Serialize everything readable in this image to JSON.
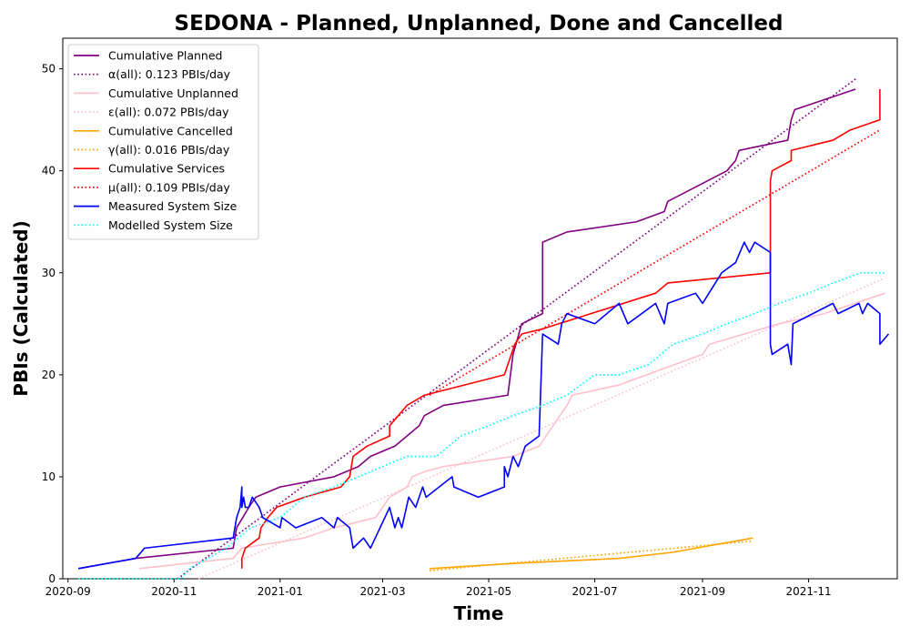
{
  "chart_data": {
    "type": "line",
    "title": "SEDONA - Planned, Unplanned, Done  and Cancelled",
    "xlabel": "Time",
    "ylabel": "PBIs (Calculated)",
    "x_axis_type": "date",
    "xlim": [
      "2020-08-29",
      "2021-12-22"
    ],
    "ylim": [
      0,
      53
    ],
    "x_tick_dates": [
      "2020-09-01",
      "2020-11-01",
      "2021-01-01",
      "2021-03-01",
      "2021-05-01",
      "2021-07-01",
      "2021-09-01",
      "2021-11-01"
    ],
    "x_tick_labels": [
      "2020-09",
      "2020-11",
      "2021-01",
      "2021-03",
      "2021-05",
      "2021-07",
      "2021-09",
      "2021-11"
    ],
    "y_ticks": [
      0,
      10,
      20,
      30,
      40,
      50
    ],
    "y_tick_labels": [
      "0",
      "10",
      "20",
      "30",
      "40",
      "50"
    ],
    "grid": false,
    "legend_position": "top-left",
    "series": [
      {
        "name": "Cumulative Planned",
        "color": "#800080",
        "style": "solid",
        "points": [
          [
            "2020-09-07",
            1
          ],
          [
            "2020-10-10",
            2
          ],
          [
            "2020-12-05",
            3
          ],
          [
            "2020-12-07",
            5
          ],
          [
            "2020-12-14",
            7
          ],
          [
            "2020-12-18",
            8
          ],
          [
            "2021-01-01",
            9
          ],
          [
            "2021-02-01",
            10
          ],
          [
            "2021-02-15",
            11
          ],
          [
            "2021-02-22",
            12
          ],
          [
            "2021-03-08",
            13
          ],
          [
            "2021-03-15",
            14
          ],
          [
            "2021-03-22",
            15
          ],
          [
            "2021-03-25",
            16
          ],
          [
            "2021-04-05",
            17
          ],
          [
            "2021-05-12",
            18
          ],
          [
            "2021-05-15",
            22
          ],
          [
            "2021-05-20",
            25
          ],
          [
            "2021-06-01",
            26
          ],
          [
            "2021-06-01",
            33
          ],
          [
            "2021-06-15",
            34
          ],
          [
            "2021-07-25",
            35
          ],
          [
            "2021-08-10",
            36
          ],
          [
            "2021-08-12",
            37
          ],
          [
            "2021-09-15",
            40
          ],
          [
            "2021-09-20",
            41
          ],
          [
            "2021-09-22",
            42
          ],
          [
            "2021-10-20",
            43
          ],
          [
            "2021-10-22",
            45
          ],
          [
            "2021-10-24",
            46
          ],
          [
            "2021-11-28",
            48
          ]
        ]
      },
      {
        "name": "α(all): 0.123 PBIs/day",
        "color": "#800080",
        "style": "dotted",
        "points": [
          [
            "2020-11-03",
            0
          ],
          [
            "2021-11-28",
            49
          ]
        ]
      },
      {
        "name": "Cumulative Unplanned",
        "color": "#ffc0cb",
        "style": "solid",
        "points": [
          [
            "2020-10-12",
            1
          ],
          [
            "2020-12-05",
            2
          ],
          [
            "2020-12-10",
            3
          ],
          [
            "2021-01-15",
            4
          ],
          [
            "2021-02-01",
            5
          ],
          [
            "2021-02-25",
            6
          ],
          [
            "2021-03-05",
            8
          ],
          [
            "2021-03-15",
            9
          ],
          [
            "2021-03-18",
            10
          ],
          [
            "2021-03-25",
            10.5
          ],
          [
            "2021-04-05",
            11
          ],
          [
            "2021-05-15",
            12
          ],
          [
            "2021-05-30",
            13
          ],
          [
            "2021-06-15",
            17
          ],
          [
            "2021-06-18",
            18
          ],
          [
            "2021-07-15",
            19
          ],
          [
            "2021-09-01",
            22
          ],
          [
            "2021-09-05",
            23
          ],
          [
            "2021-10-15",
            25
          ],
          [
            "2021-11-10",
            26
          ],
          [
            "2021-12-15",
            28
          ]
        ]
      },
      {
        "name": "ε(all): 0.072 PBIs/day",
        "color": "#ffc0cb",
        "style": "dotted",
        "points": [
          [
            "2020-11-15",
            0
          ],
          [
            "2021-12-15",
            29.5
          ]
        ]
      },
      {
        "name": "Cumulative Cancelled",
        "color": "#ffa500",
        "style": "solid",
        "points": [
          [
            "2021-03-28",
            1
          ],
          [
            "2021-05-15",
            1.5
          ],
          [
            "2021-07-15",
            2
          ],
          [
            "2021-08-15",
            2.6
          ],
          [
            "2021-09-30",
            4
          ]
        ]
      },
      {
        "name": "γ(all): 0.016 PBIs/day",
        "color": "#ffa500",
        "style": "dotted",
        "points": [
          [
            "2021-03-28",
            0.8
          ],
          [
            "2021-09-30",
            3.7
          ]
        ]
      },
      {
        "name": "Cumulative Services",
        "color": "#ff0000",
        "style": "solid",
        "points": [
          [
            "2020-12-10",
            1
          ],
          [
            "2020-12-10",
            2
          ],
          [
            "2020-12-12",
            3
          ],
          [
            "2020-12-20",
            4
          ],
          [
            "2020-12-21",
            5
          ],
          [
            "2020-12-25",
            6
          ],
          [
            "2020-12-30",
            7
          ],
          [
            "2021-01-15",
            8
          ],
          [
            "2021-02-05",
            9
          ],
          [
            "2021-02-10",
            10
          ],
          [
            "2021-02-12",
            12
          ],
          [
            "2021-02-20",
            13
          ],
          [
            "2021-03-05",
            14
          ],
          [
            "2021-03-05",
            15
          ],
          [
            "2021-03-15",
            17
          ],
          [
            "2021-03-25",
            18
          ],
          [
            "2021-05-10",
            20
          ],
          [
            "2021-05-12",
            21
          ],
          [
            "2021-05-16",
            23
          ],
          [
            "2021-05-20",
            24
          ],
          [
            "2021-06-01",
            24.5
          ],
          [
            "2021-08-05",
            28
          ],
          [
            "2021-08-12",
            29
          ],
          [
            "2021-10-10",
            30
          ],
          [
            "2021-10-10",
            39
          ],
          [
            "2021-10-11",
            40
          ],
          [
            "2021-10-22",
            41
          ],
          [
            "2021-10-22",
            42
          ],
          [
            "2021-11-15",
            43
          ],
          [
            "2021-11-25",
            44
          ],
          [
            "2021-12-12",
            45
          ],
          [
            "2021-12-12",
            48
          ]
        ]
      },
      {
        "name": "μ(all): 0.109 PBIs/day",
        "color": "#ff0000",
        "style": "dotted",
        "points": [
          [
            "2021-03-28",
            18
          ],
          [
            "2021-12-12",
            44
          ]
        ]
      },
      {
        "name": "Measured System Size",
        "color": "#0000ff",
        "style": "solid",
        "points": [
          [
            "2020-09-07",
            1
          ],
          [
            "2020-10-10",
            2
          ],
          [
            "2020-10-15",
            3
          ],
          [
            "2020-12-05",
            4
          ],
          [
            "2020-12-07",
            6
          ],
          [
            "2020-12-09",
            7
          ],
          [
            "2020-12-10",
            9
          ],
          [
            "2020-12-10",
            7
          ],
          [
            "2020-12-11",
            8
          ],
          [
            "2020-12-12",
            7
          ],
          [
            "2020-12-14",
            7
          ],
          [
            "2020-12-16",
            8
          ],
          [
            "2020-12-20",
            7
          ],
          [
            "2020-12-22",
            6
          ],
          [
            "2021-01-01",
            5
          ],
          [
            "2021-01-02",
            6
          ],
          [
            "2021-01-10",
            5
          ],
          [
            "2021-01-25",
            6
          ],
          [
            "2021-02-01",
            5
          ],
          [
            "2021-02-03",
            6
          ],
          [
            "2021-02-10",
            5
          ],
          [
            "2021-02-12",
            3
          ],
          [
            "2021-02-18",
            4
          ],
          [
            "2021-02-22",
            3
          ],
          [
            "2021-03-05",
            7
          ],
          [
            "2021-03-08",
            5
          ],
          [
            "2021-03-10",
            6
          ],
          [
            "2021-03-12",
            5
          ],
          [
            "2021-03-16",
            8
          ],
          [
            "2021-03-20",
            7
          ],
          [
            "2021-03-24",
            9
          ],
          [
            "2021-03-26",
            8
          ],
          [
            "2021-04-10",
            10
          ],
          [
            "2021-04-11",
            9
          ],
          [
            "2021-04-25",
            8
          ],
          [
            "2021-05-10",
            9
          ],
          [
            "2021-05-10",
            11
          ],
          [
            "2021-05-12",
            10
          ],
          [
            "2021-05-15",
            12
          ],
          [
            "2021-05-18",
            11
          ],
          [
            "2021-05-22",
            13
          ],
          [
            "2021-05-30",
            14
          ],
          [
            "2021-06-01",
            24
          ],
          [
            "2021-06-10",
            23
          ],
          [
            "2021-06-12",
            25
          ],
          [
            "2021-06-15",
            26
          ],
          [
            "2021-07-01",
            25
          ],
          [
            "2021-07-15",
            27
          ],
          [
            "2021-07-20",
            25
          ],
          [
            "2021-08-05",
            27
          ],
          [
            "2021-08-10",
            25
          ],
          [
            "2021-08-12",
            27
          ],
          [
            "2021-08-28",
            28
          ],
          [
            "2021-09-01",
            27
          ],
          [
            "2021-09-12",
            30
          ],
          [
            "2021-09-20",
            31
          ],
          [
            "2021-09-25",
            33
          ],
          [
            "2021-09-28",
            32
          ],
          [
            "2021-10-01",
            33
          ],
          [
            "2021-10-10",
            32
          ],
          [
            "2021-10-10",
            23
          ],
          [
            "2021-10-11",
            22
          ],
          [
            "2021-10-20",
            23
          ],
          [
            "2021-10-22",
            21
          ],
          [
            "2021-10-23",
            25
          ],
          [
            "2021-11-15",
            27
          ],
          [
            "2021-11-18",
            26
          ],
          [
            "2021-11-30",
            27
          ],
          [
            "2021-12-02",
            26
          ],
          [
            "2021-12-05",
            27
          ],
          [
            "2021-12-12",
            26
          ],
          [
            "2021-12-12",
            23
          ],
          [
            "2021-12-17",
            24
          ]
        ]
      },
      {
        "name": "Modelled System Size",
        "color": "#00ffff",
        "style": "dotted",
        "points": [
          [
            "2020-09-07",
            0
          ],
          [
            "2020-11-05",
            0
          ],
          [
            "2020-11-10",
            1
          ],
          [
            "2020-12-01",
            3
          ],
          [
            "2020-12-15",
            5
          ],
          [
            "2021-01-01",
            6
          ],
          [
            "2021-01-15",
            8
          ],
          [
            "2021-02-01",
            9
          ],
          [
            "2021-02-15",
            10
          ],
          [
            "2021-03-01",
            11
          ],
          [
            "2021-03-15",
            12
          ],
          [
            "2021-04-01",
            12
          ],
          [
            "2021-04-15",
            14
          ],
          [
            "2021-05-01",
            15
          ],
          [
            "2021-05-15",
            16
          ],
          [
            "2021-06-01",
            17
          ],
          [
            "2021-06-15",
            18
          ],
          [
            "2021-07-01",
            20
          ],
          [
            "2021-07-15",
            20
          ],
          [
            "2021-08-01",
            21
          ],
          [
            "2021-08-15",
            23
          ],
          [
            "2021-09-01",
            24
          ],
          [
            "2021-09-15",
            25
          ],
          [
            "2021-10-01",
            26
          ],
          [
            "2021-10-15",
            27
          ],
          [
            "2021-11-01",
            28
          ],
          [
            "2021-11-15",
            29
          ],
          [
            "2021-12-01",
            30
          ],
          [
            "2021-12-15",
            30
          ]
        ]
      }
    ]
  }
}
